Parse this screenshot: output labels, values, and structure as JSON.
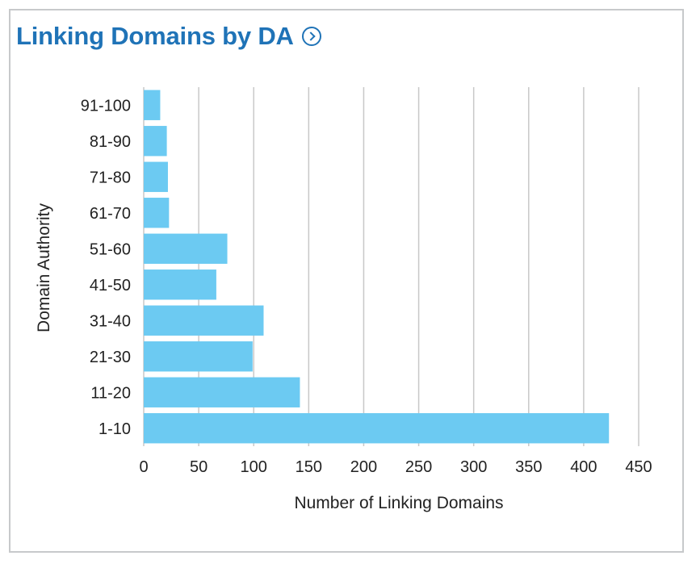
{
  "widget": {
    "title": "Linking Domains by DA"
  },
  "chart_data": {
    "type": "bar",
    "orientation": "horizontal",
    "title": "Linking Domains by DA",
    "xlabel": "Number of Linking Domains",
    "ylabel": "Domain Authority",
    "xlim": [
      0,
      450
    ],
    "xticks": [
      0,
      50,
      100,
      150,
      200,
      250,
      300,
      350,
      400,
      450
    ],
    "grid": "vertical",
    "categories": [
      "91-100",
      "81-90",
      "71-80",
      "61-70",
      "51-60",
      "41-50",
      "31-40",
      "21-30",
      "11-20",
      "1-10"
    ],
    "values": [
      15,
      21,
      22,
      23,
      76,
      66,
      109,
      99,
      142,
      423
    ],
    "colors": {
      "bar": "#6ccaf2",
      "grid": "#c8c8c8",
      "title": "#1f73b7"
    }
  }
}
